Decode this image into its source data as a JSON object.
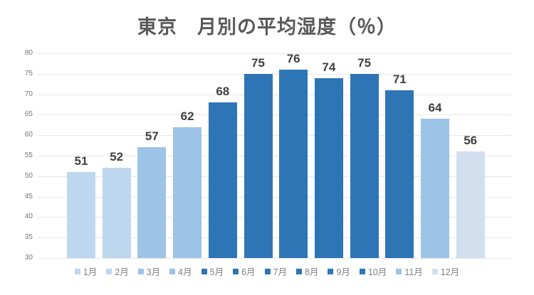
{
  "chart_data": {
    "type": "bar",
    "title": "東京　月別の平均湿度（％）",
    "categories": [
      "1月",
      "2月",
      "3月",
      "4月",
      "5月",
      "6月",
      "7月",
      "8月",
      "9月",
      "10月",
      "11月",
      "12月"
    ],
    "values": [
      51,
      52,
      57,
      62,
      68,
      75,
      76,
      74,
      75,
      71,
      64,
      56
    ],
    "bar_colors": [
      "#BDD7EE",
      "#BDD7EE",
      "#9DC3E6",
      "#9DC3E6",
      "#2E75B6",
      "#2E75B6",
      "#2E75B6",
      "#2E75B6",
      "#2E75B6",
      "#2E75B6",
      "#9DC3E6",
      "#D2DFEF"
    ],
    "value_labels": [
      51,
      52,
      57,
      62,
      68,
      75,
      76,
      74,
      75,
      71,
      64,
      56
    ],
    "xlabel": "",
    "ylabel": "",
    "ylim": [
      30,
      80
    ],
    "yticks": [
      30,
      35,
      40,
      45,
      50,
      55,
      60,
      65,
      70,
      75,
      80
    ],
    "grid": "horizontal",
    "legend_position": "bottom",
    "colors": {
      "title_text": "#595959",
      "value_label_text": "#404040",
      "axis_tick_text": "#757575",
      "legend_text": "#7f7f7f",
      "gridline": "#e6e6e6",
      "background": "#ffffff"
    }
  }
}
